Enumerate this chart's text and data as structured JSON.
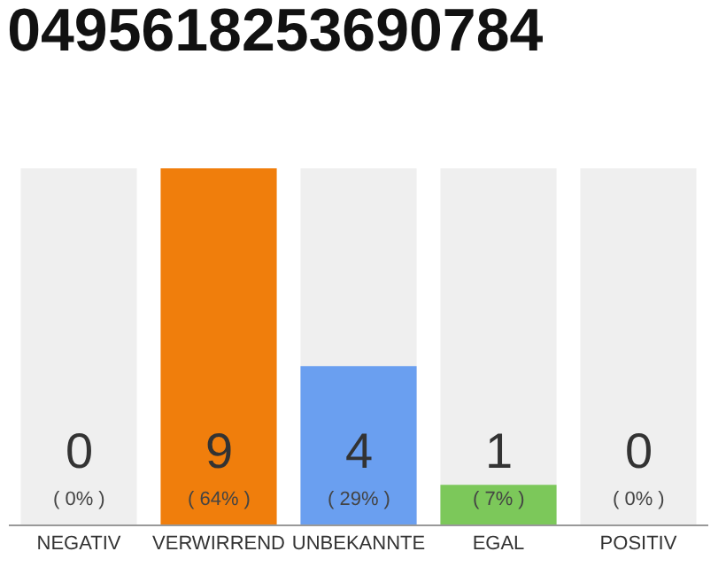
{
  "chart_data": {
    "type": "bar",
    "title": "0495618253690784",
    "categories": [
      "NEGATIV",
      "VERWIRREND",
      "UNBEKANNTE",
      "EGAL",
      "POSITIV"
    ],
    "values": [
      0,
      9,
      4,
      1,
      0
    ],
    "colors": [
      "#9e9e9e",
      "#f07e0c",
      "#6a9ff0",
      "#7cc85a",
      "#9e9e9e"
    ],
    "value_labels": [
      "0\n( 0% )",
      "9\n( 64% )",
      "4\n( 29% )",
      "1\n( 7% )",
      "0\n( 0% )"
    ],
    "ylim": [
      0,
      9
    ],
    "bands": [
      {
        "axis": "x",
        "from": "NEGATIV",
        "to": "NEGATIV",
        "color": "#efefef"
      },
      {
        "axis": "x",
        "from": "UNBEKANNTE",
        "to": "UNBEKANNTE",
        "color": "#efefef"
      },
      {
        "axis": "x",
        "from": "EGAL",
        "to": "EGAL",
        "color": "#efefef"
      },
      {
        "axis": "x",
        "from": "POSITIV",
        "to": "POSITIV",
        "color": "#efefef"
      }
    ]
  }
}
